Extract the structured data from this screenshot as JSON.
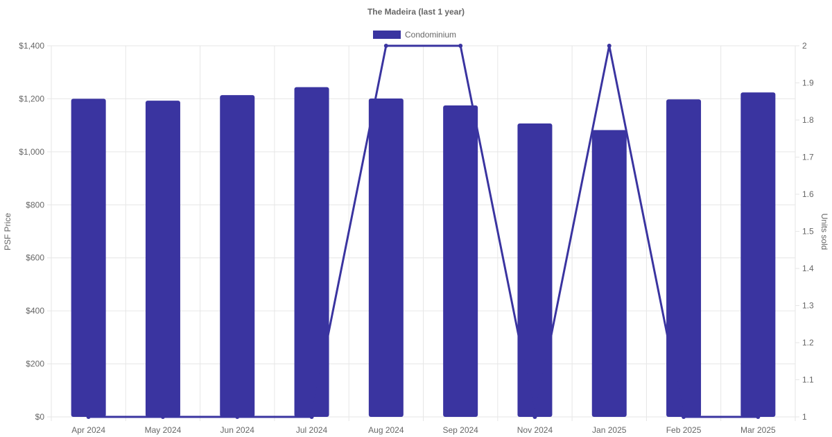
{
  "chart_data": {
    "type": "bar",
    "title": "The Madeira (last 1 year)",
    "categories": [
      "Apr 2024",
      "May 2024",
      "Jun 2024",
      "Jul 2024",
      "Aug 2024",
      "Sep 2024",
      "Nov 2024",
      "Jan 2025",
      "Feb 2025",
      "Mar 2025"
    ],
    "series": [
      {
        "name": "Condominium",
        "type": "bar",
        "axis": "left",
        "color": "#3a34a0",
        "values": [
          1200,
          1193,
          1214,
          1244,
          1201,
          1175,
          1107,
          1082,
          1198,
          1224
        ]
      },
      {
        "type": "line",
        "axis": "right",
        "color": "#3a34a0",
        "values": [
          1,
          1,
          1,
          1,
          2,
          2,
          1,
          2,
          1,
          1
        ]
      }
    ],
    "left_axis": {
      "label": "PSF Price",
      "ylim": [
        0,
        1400
      ],
      "ticks": [
        0,
        200,
        400,
        600,
        800,
        1000,
        1200,
        1400
      ],
      "tick_labels": [
        "$0",
        "$200",
        "$400",
        "$600",
        "$800",
        "$1,000",
        "$1,200",
        "$1,400"
      ]
    },
    "right_axis": {
      "label": "Units sold",
      "ylim": [
        1,
        2
      ],
      "ticks": [
        1,
        1.1,
        1.2,
        1.3,
        1.4,
        1.5,
        1.6,
        1.7,
        1.8,
        1.9,
        2
      ],
      "tick_labels": [
        "1",
        "1.1",
        "1.2",
        "1.3",
        "1.4",
        "1.5",
        "1.6",
        "1.7",
        "1.8",
        "1.9",
        "2"
      ]
    },
    "legend": "top-center",
    "grid": true
  }
}
